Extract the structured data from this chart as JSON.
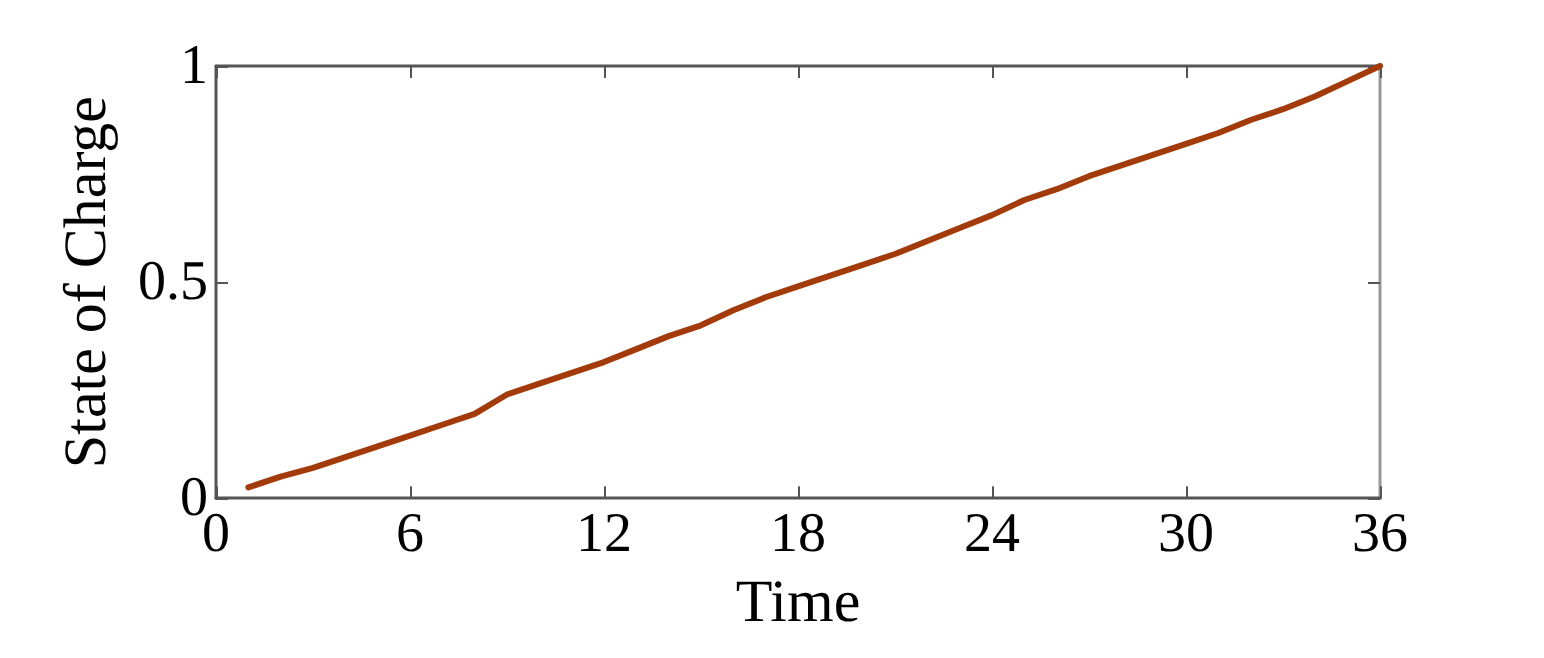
{
  "chart_data": {
    "type": "line",
    "xlabel": "Time",
    "ylabel": "State of Charge",
    "x": [
      1,
      2,
      3,
      4,
      5,
      6,
      7,
      8,
      9,
      10,
      11,
      12,
      13,
      14,
      15,
      16,
      17,
      18,
      19,
      20,
      21,
      22,
      23,
      24,
      25,
      26,
      27,
      28,
      29,
      30,
      31,
      32,
      33,
      34,
      35,
      36
    ],
    "series": [
      {
        "color": "#a33a0a",
        "values": [
          0.025,
          0.05,
          0.07,
          0.095,
          0.12,
          0.145,
          0.17,
          0.195,
          0.24,
          0.265,
          0.29,
          0.315,
          0.345,
          0.375,
          0.4,
          0.435,
          0.465,
          0.49,
          0.515,
          0.54,
          0.565,
          0.595,
          0.625,
          0.655,
          0.69,
          0.715,
          0.745,
          0.77,
          0.795,
          0.82,
          0.845,
          0.875,
          0.9,
          0.93,
          0.965,
          1
        ]
      }
    ],
    "xlim": [
      0,
      36
    ],
    "xticks": [
      0,
      6,
      12,
      18,
      24,
      30,
      36
    ],
    "ylim": [
      0,
      1
    ],
    "yticks": [
      0,
      0.5,
      1
    ],
    "grid": false,
    "marker": "none",
    "line_style": "solid"
  }
}
